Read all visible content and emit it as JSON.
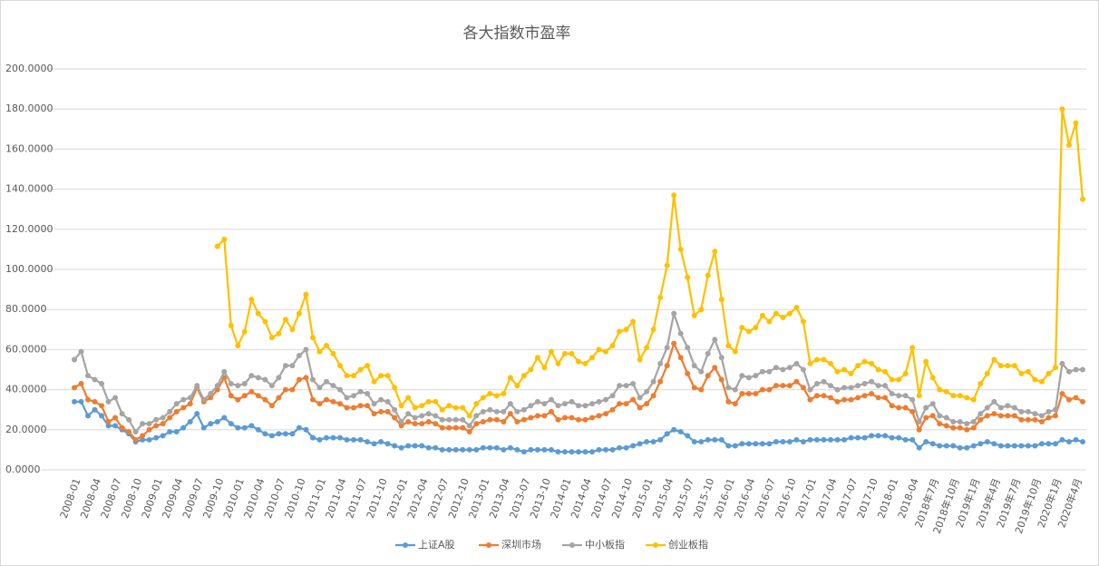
{
  "chart_data": {
    "type": "line",
    "title": "各大指数市盈率",
    "categories": [
      "2008-01",
      null,
      null,
      "2008-04",
      null,
      null,
      "2008-07",
      null,
      null,
      "2008-10",
      null,
      null,
      "2009-01",
      null,
      null,
      "2009-04",
      null,
      null,
      "2009-07",
      null,
      null,
      "2009-10",
      null,
      null,
      "2010-01",
      null,
      null,
      "2010-04",
      null,
      null,
      "2010-07",
      null,
      null,
      "2010-10",
      null,
      null,
      "2011-01",
      null,
      null,
      "2011-04",
      null,
      null,
      "2011-07",
      null,
      null,
      "2011-10",
      null,
      null,
      "2012-01",
      null,
      null,
      "2012-04",
      null,
      null,
      "2012-07",
      null,
      null,
      "2012-10",
      null,
      null,
      "2013-01",
      null,
      null,
      "2013-04",
      null,
      null,
      "2013-07",
      null,
      null,
      "2013-10",
      null,
      null,
      "2014-01",
      null,
      null,
      "2014-04",
      null,
      null,
      "2014-07",
      null,
      null,
      "2014-10",
      null,
      null,
      "2015-01",
      null,
      null,
      "2015-04",
      null,
      null,
      "2015-07",
      null,
      null,
      "2015-10",
      null,
      null,
      "2016-01",
      null,
      null,
      "2016-04",
      null,
      null,
      "2016-07",
      null,
      null,
      "2016-10",
      null,
      null,
      "2017-01",
      null,
      null,
      "2017-04",
      null,
      null,
      "2017-07",
      null,
      null,
      "2017-10",
      null,
      null,
      "2018-01",
      null,
      null,
      "2018-04",
      null,
      null,
      "2018年7月",
      null,
      null,
      "2018年10月",
      null,
      null,
      "2019年1月",
      null,
      null,
      "2019年4月",
      null,
      null,
      "2019年7月",
      null,
      null,
      "2019年10月",
      null,
      null,
      "2020年1月",
      null,
      null,
      "2020年4月",
      null
    ],
    "series": [
      {
        "name": "上证A股",
        "color": "#5b9bd5",
        "values": [
          34,
          34,
          27,
          30,
          27,
          22,
          22,
          20,
          18,
          14,
          15,
          15,
          16,
          17,
          19,
          19,
          21,
          24,
          28,
          21,
          23,
          24,
          26,
          23,
          21,
          21,
          22,
          20,
          18,
          17,
          18,
          18,
          18,
          21,
          20,
          16,
          15,
          16,
          16,
          16,
          15,
          15,
          15,
          14,
          13,
          14,
          13,
          12,
          11,
          12,
          12,
          12,
          11,
          11,
          10,
          10,
          10,
          10,
          10,
          10,
          11,
          11,
          11,
          10,
          11,
          10,
          9,
          10,
          10,
          10,
          10,
          9,
          9,
          9,
          9,
          9,
          9,
          10,
          10,
          10,
          11,
          11,
          12,
          13,
          14,
          14,
          15,
          18,
          20,
          19,
          17,
          14,
          14,
          15,
          15,
          15,
          12,
          12,
          13,
          13,
          13,
          13,
          13,
          14,
          14,
          14,
          15,
          14,
          15,
          15,
          15,
          15,
          15,
          15,
          16,
          16,
          16,
          17,
          17,
          17,
          16,
          16,
          15,
          15,
          11,
          14,
          13,
          12,
          12,
          12,
          11,
          11,
          12,
          13,
          14,
          13,
          12,
          12,
          12,
          12,
          12,
          12,
          13,
          13,
          13,
          15,
          14,
          15,
          14
        ]
      },
      {
        "name": "深圳市场",
        "color": "#ed7d31",
        "values": [
          41,
          43,
          35,
          34,
          32,
          24,
          26,
          21,
          19,
          15,
          17,
          20,
          22,
          23,
          26,
          29,
          31,
          33,
          41,
          34,
          36,
          40,
          46,
          37,
          35,
          37,
          39,
          37,
          35,
          32,
          36,
          40,
          40,
          45,
          46,
          35,
          33,
          35,
          34,
          33,
          31,
          31,
          32,
          32,
          28,
          29,
          29,
          26,
          22,
          24,
          23,
          23,
          24,
          23,
          21,
          21,
          21,
          21,
          19,
          23,
          24,
          25,
          25,
          24,
          28,
          24,
          25,
          26,
          27,
          27,
          29,
          25,
          26,
          26,
          25,
          25,
          26,
          27,
          28,
          30,
          33,
          33,
          35,
          31,
          33,
          37,
          44,
          52,
          63,
          56,
          48,
          41,
          40,
          47,
          51,
          45,
          34,
          33,
          38,
          38,
          38,
          40,
          40,
          42,
          42,
          42,
          44,
          41,
          35,
          37,
          37,
          36,
          34,
          35,
          35,
          36,
          37,
          38,
          36,
          36,
          32,
          31,
          31,
          29,
          20,
          26,
          27,
          23,
          22,
          21,
          21,
          20,
          21,
          25,
          27,
          28,
          27,
          27,
          27,
          25,
          25,
          25,
          24,
          26,
          27,
          38,
          35,
          36,
          34
        ]
      },
      {
        "name": "中小板指",
        "color": "#a5a5a5",
        "values": [
          55,
          59,
          47,
          45,
          43,
          34,
          36,
          28,
          25,
          19,
          23,
          23,
          25,
          26,
          29,
          33,
          35,
          36,
          42,
          35,
          38,
          42,
          49,
          43,
          42,
          43,
          47,
          46,
          45,
          42,
          46,
          52,
          52,
          57,
          60,
          45,
          41,
          44,
          42,
          40,
          36,
          37,
          39,
          38,
          33,
          35,
          34,
          30,
          24,
          28,
          26,
          27,
          28,
          27,
          25,
          25,
          25,
          25,
          22,
          27,
          29,
          30,
          29,
          29,
          33,
          29,
          30,
          32,
          34,
          33,
          35,
          32,
          33,
          34,
          32,
          32,
          33,
          34,
          35,
          37,
          42,
          42,
          43,
          36,
          39,
          44,
          53,
          61,
          78,
          68,
          61,
          52,
          49,
          58,
          65,
          56,
          41,
          40,
          47,
          46,
          47,
          49,
          49,
          51,
          50,
          51,
          53,
          50,
          40,
          43,
          44,
          42,
          40,
          41,
          41,
          42,
          43,
          44,
          42,
          42,
          38,
          37,
          37,
          35,
          24,
          31,
          33,
          27,
          26,
          24,
          24,
          23,
          24,
          28,
          31,
          34,
          31,
          32,
          31,
          29,
          29,
          28,
          27,
          29,
          30,
          53,
          49,
          50,
          50
        ]
      },
      {
        "name": "创业板指",
        "color": "#ffc000",
        "values": [
          null,
          null,
          null,
          null,
          null,
          null,
          null,
          null,
          null,
          null,
          null,
          null,
          null,
          null,
          null,
          null,
          null,
          null,
          null,
          null,
          null,
          111.5,
          115,
          72,
          62,
          69,
          85,
          78,
          74,
          66,
          68,
          75,
          70,
          78,
          87.5,
          66,
          59,
          62,
          58,
          52,
          47,
          47,
          50,
          52,
          44,
          47,
          47,
          41,
          32,
          36,
          31,
          32,
          34,
          34,
          30,
          32,
          31,
          31,
          27,
          33,
          36,
          38,
          37,
          38,
          46,
          42,
          47,
          50,
          56,
          51,
          59,
          53,
          58,
          58,
          54,
          53,
          56,
          60,
          59,
          62,
          69,
          70,
          74,
          55,
          61,
          70,
          86,
          102,
          137,
          110,
          96,
          77,
          80,
          97,
          109,
          85,
          62,
          59,
          71,
          69,
          71,
          77,
          74,
          78,
          76,
          78,
          81,
          74,
          53,
          55,
          55,
          53,
          49,
          50,
          48,
          52,
          54,
          53,
          50,
          49,
          45,
          45,
          48,
          61,
          37,
          54,
          46,
          40,
          39,
          37,
          37,
          36,
          35,
          43,
          48,
          55,
          52,
          52,
          52,
          48,
          49,
          45,
          44,
          48,
          51,
          180,
          162,
          173,
          135
        ]
      }
    ],
    "ylim": [
      0,
      200
    ],
    "yticks": [
      {
        "value": 0,
        "label": "0.0000"
      },
      {
        "value": 20,
        "label": "20.0000"
      },
      {
        "value": 40,
        "label": "40.0000"
      },
      {
        "value": 60,
        "label": "60.0000"
      },
      {
        "value": 80,
        "label": "80.0000"
      },
      {
        "value": 100,
        "label": "100.0000"
      },
      {
        "value": 120,
        "label": "120.0000"
      },
      {
        "value": 140,
        "label": "140.0000"
      },
      {
        "value": 160,
        "label": "160.0000"
      },
      {
        "value": 180,
        "label": "180.0000"
      },
      {
        "value": 200,
        "label": "200.0000"
      }
    ],
    "grid": true,
    "legend": "bottom"
  }
}
